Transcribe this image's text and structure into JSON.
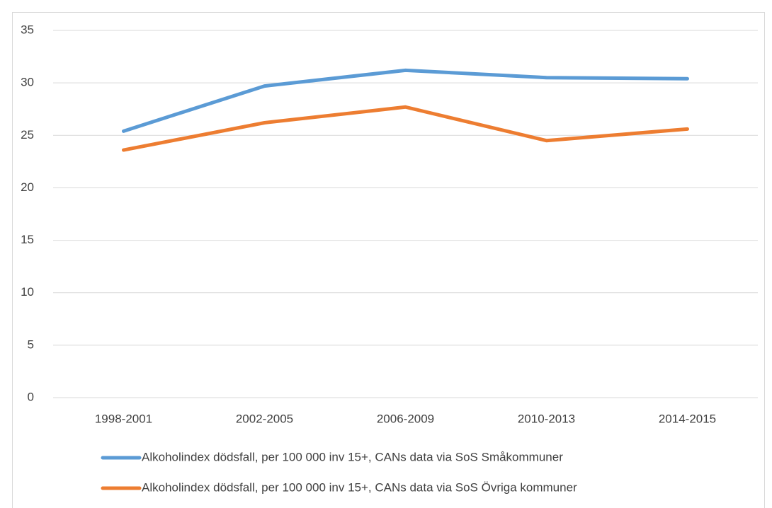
{
  "chart_data": {
    "type": "line",
    "categories": [
      "1998-2001",
      "2002-2005",
      "2006-2009",
      "2010-2013",
      "2014-2015"
    ],
    "series": [
      {
        "name": "Alkoholindex dödsfall, per 100 000 inv 15+, CANs data via SoS Småkommuner",
        "color": "#5b9bd5",
        "values": [
          25.4,
          29.7,
          31.2,
          30.5,
          30.4
        ]
      },
      {
        "name": "Alkoholindex dödsfall, per 100 000 inv 15+, CANs data via SoS Övriga kommuner",
        "color": "#ed7d31",
        "values": [
          23.6,
          26.2,
          27.7,
          24.5,
          25.6
        ]
      }
    ],
    "ylim": [
      0,
      35
    ],
    "yticks": [
      0,
      5,
      10,
      15,
      20,
      25,
      30,
      35
    ],
    "grid": true,
    "legend": "bottom"
  }
}
